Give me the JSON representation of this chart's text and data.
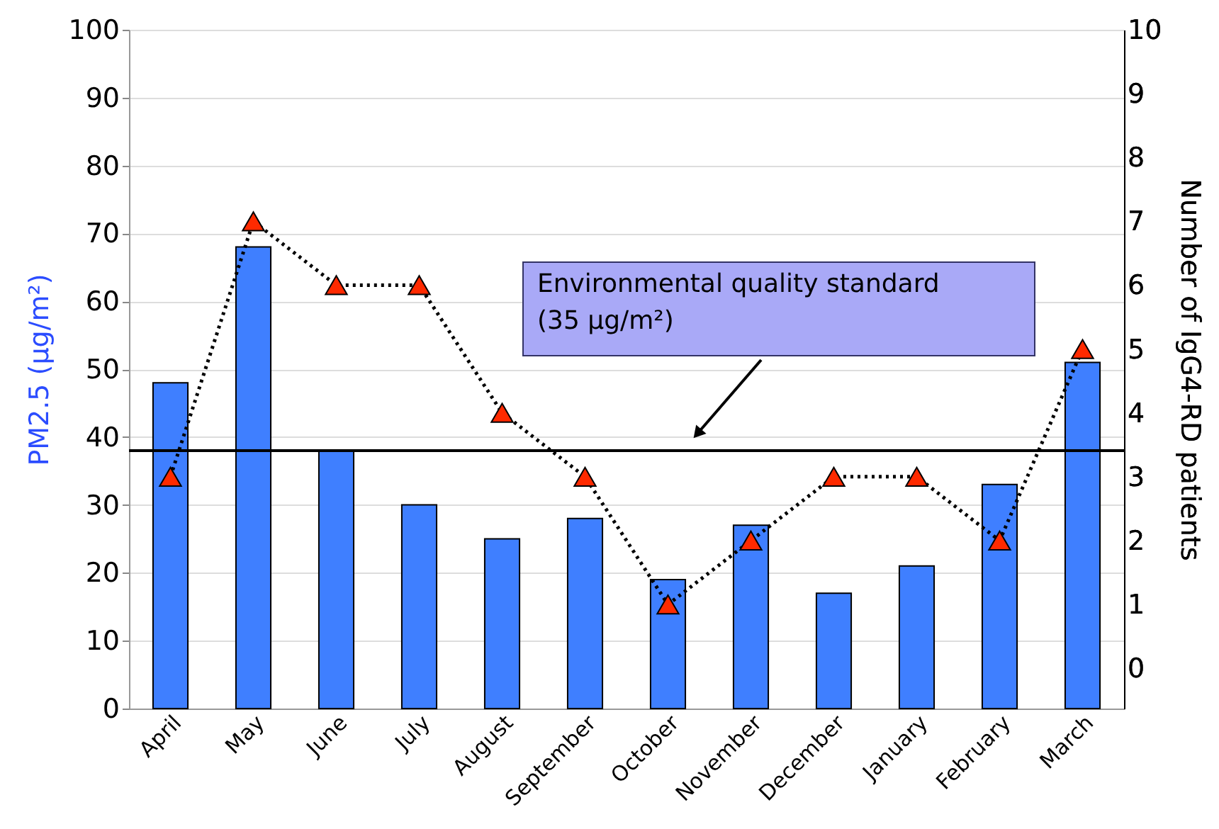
{
  "chart_data": {
    "type": "bar",
    "categories": [
      "April",
      "May",
      "June",
      "July",
      "August",
      "September",
      "October",
      "November",
      "December",
      "January",
      "February",
      "March"
    ],
    "ylabel": "PM2.5 (µg/m²)",
    "y2label": "Number of IgG4-RD patients",
    "ylim": [
      0,
      100
    ],
    "yticks": [
      0,
      10,
      20,
      30,
      40,
      50,
      60,
      70,
      80,
      90,
      100
    ],
    "y2lim": [
      -0.63,
      10
    ],
    "y2ticks": [
      0,
      1,
      2,
      3,
      4,
      5,
      6,
      7,
      8,
      9,
      10
    ],
    "grid": "y",
    "marker": "triangle",
    "line_style": "dotted",
    "series": [
      {
        "color": "#3f7fff",
        "values": [
          48,
          68,
          38,
          30,
          25,
          28,
          19,
          27,
          17,
          21,
          33,
          51
        ]
      },
      {
        "type": "line",
        "axis": "y2",
        "color": "#ff2a00",
        "values": [
          3,
          7,
          6,
          6,
          4,
          3,
          1,
          2,
          3,
          3,
          2,
          5
        ]
      }
    ],
    "ref_lines": [
      {
        "axis": "y",
        "value": 38,
        "color": "#000000"
      }
    ],
    "annotations": [
      "Environmental quality standard\n(35 µg/m²)"
    ]
  }
}
